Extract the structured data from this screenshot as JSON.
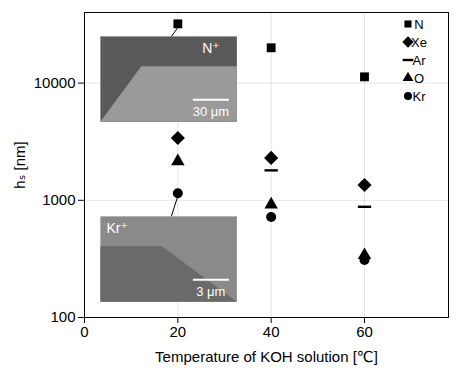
{
  "chart_data": {
    "type": "scatter",
    "x_label": "Temperature of KOH solution [℃]",
    "y_label": "hₛ [nm]",
    "x": [
      20,
      40,
      60
    ],
    "series": [
      {
        "name": "N",
        "marker": "square",
        "color": "#000000",
        "values": [
          32000,
          20000,
          11300
        ]
      },
      {
        "name": "Xe",
        "marker": "diamond",
        "color": "#000000",
        "values": [
          3400,
          2300,
          1350
        ]
      },
      {
        "name": "Ar",
        "marker": "dash",
        "color": "#000000",
        "values": [
          null,
          1800,
          880
        ]
      },
      {
        "name": "O",
        "marker": "triangle",
        "color": "#000000",
        "values": [
          2150,
          920,
          340
        ]
      },
      {
        "name": "Kr",
        "marker": "circle",
        "color": "#000000",
        "values": [
          1150,
          720,
          310
        ]
      }
    ],
    "xlim": [
      0,
      78
    ],
    "ylim": [
      100,
      40000
    ],
    "xticks": [
      0,
      20,
      40,
      60
    ],
    "yticks": [
      100,
      1000,
      10000
    ],
    "log": "y",
    "grid": true,
    "legend": "top-right",
    "annotations": [
      {
        "text": "N⁺",
        "scale_bar": "30 μm",
        "series": "N",
        "x": 20
      },
      {
        "text": "Kr⁺",
        "scale_bar": "3 μm",
        "series": "Kr",
        "x": 20
      }
    ]
  }
}
